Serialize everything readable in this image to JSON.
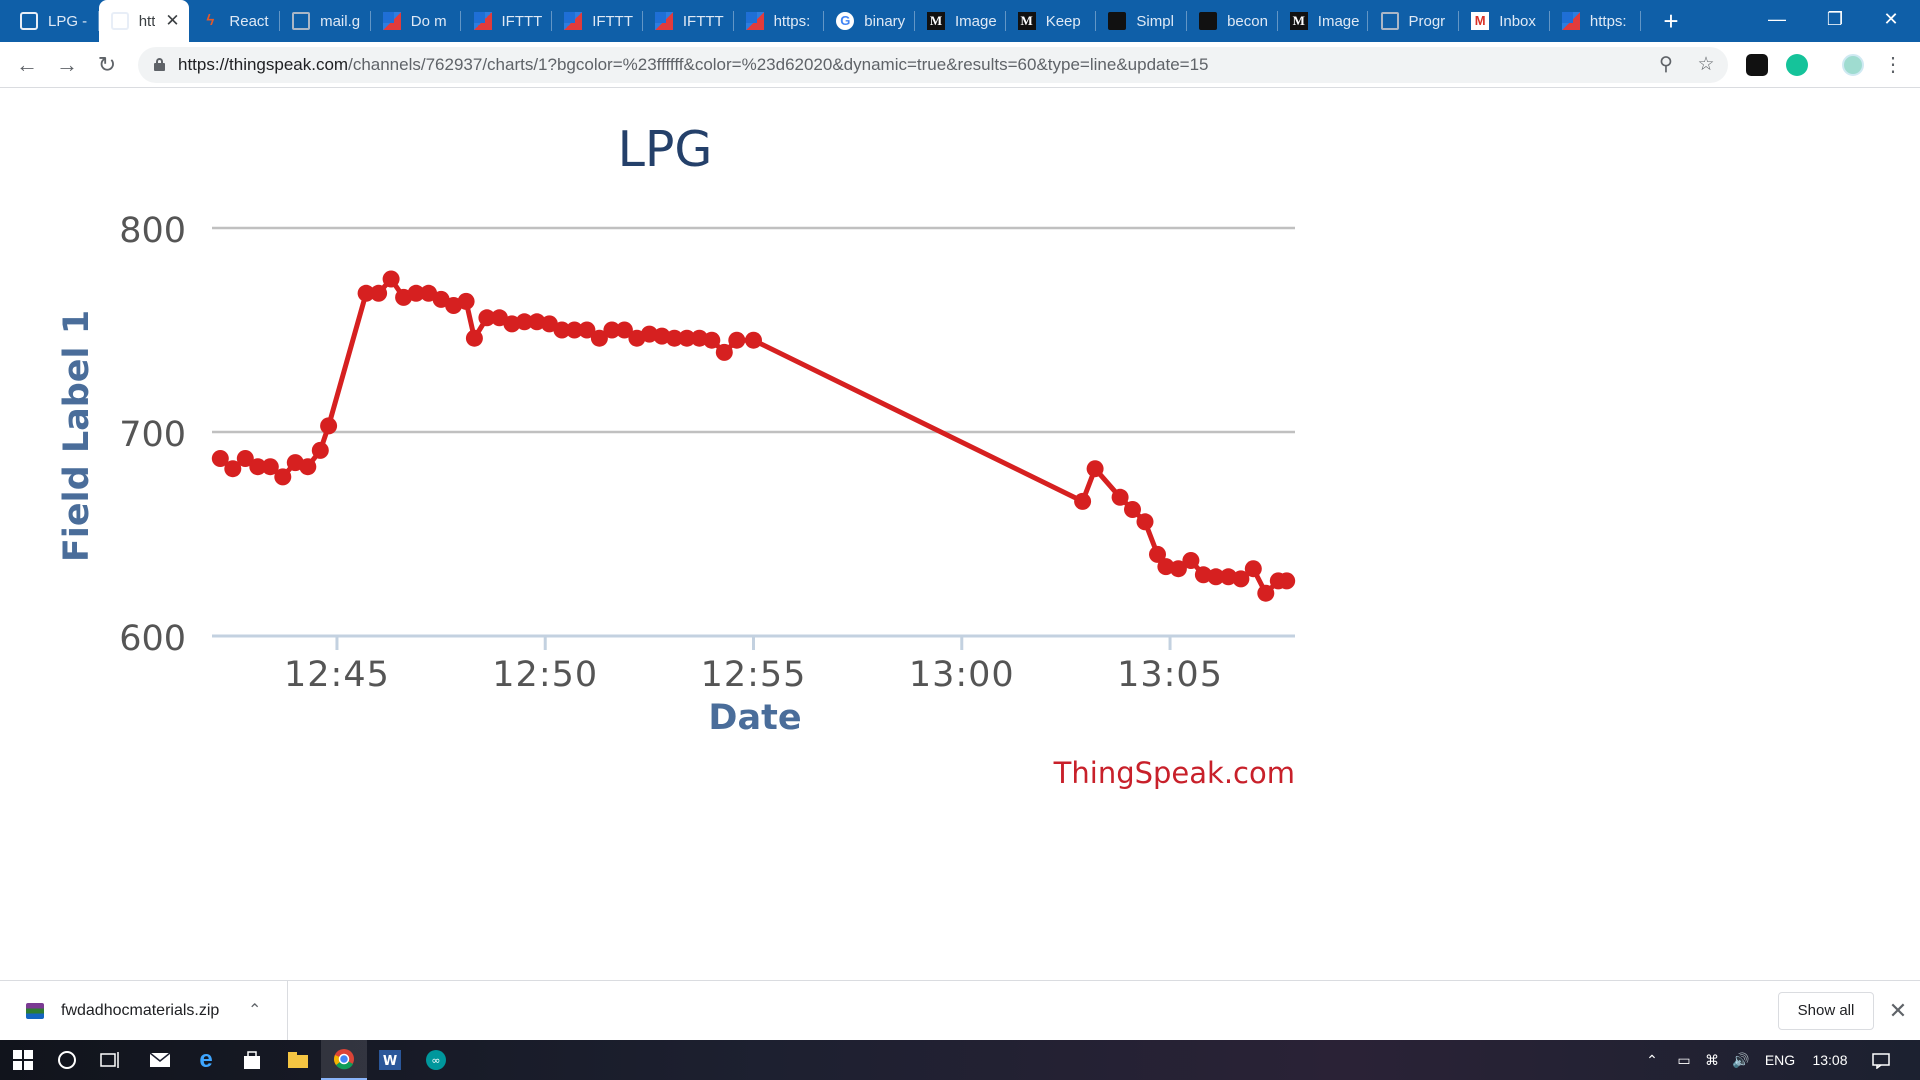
{
  "browser": {
    "tabs": [
      {
        "label": "LPG -",
        "icon": "chat-icon",
        "active": false
      },
      {
        "label": "htt",
        "icon": "chat-icon",
        "active": true
      },
      {
        "label": "React",
        "icon": "react-icon",
        "active": false
      },
      {
        "label": "mail.g",
        "icon": "document-icon",
        "active": false
      },
      {
        "label": "Do m",
        "icon": "thingspeak-icon",
        "active": false
      },
      {
        "label": "IFTTT",
        "icon": "thingspeak-icon",
        "active": false
      },
      {
        "label": "IFTTT",
        "icon": "thingspeak-icon",
        "active": false
      },
      {
        "label": "IFTTT",
        "icon": "thingspeak-icon",
        "active": false
      },
      {
        "label": "https:",
        "icon": "thingspeak-icon",
        "active": false
      },
      {
        "label": "binary",
        "icon": "google-icon",
        "active": false
      },
      {
        "label": "Image",
        "icon": "medium-icon",
        "active": false
      },
      {
        "label": "Keep",
        "icon": "medium-icon",
        "active": false
      },
      {
        "label": "Simpl",
        "icon": "dark-site-icon",
        "active": false
      },
      {
        "label": "becon",
        "icon": "dark-site-icon",
        "active": false
      },
      {
        "label": "Image",
        "icon": "medium-icon",
        "active": false
      },
      {
        "label": "Progr",
        "icon": "document-icon",
        "active": false
      },
      {
        "label": "Inbox",
        "icon": "gmail-icon",
        "active": false
      },
      {
        "label": "https:",
        "icon": "thingspeak-icon",
        "active": false
      }
    ],
    "new_tab": "+",
    "window_controls": {
      "minimize": "—",
      "restore": "❐",
      "close": "✕"
    },
    "url_host": "https://thingspeak.com",
    "url_path": "/channels/762937/charts/1?bgcolor=%23ffffff&color=%23d62020&dynamic=true&results=60&type=line&update=15",
    "toolbar_icons": [
      "back-icon",
      "forward-icon",
      "reload-icon",
      "lock-icon",
      "zoom-icon",
      "bookmark-star-icon",
      "extension-icon",
      "grammarly-icon",
      "profile-avatar",
      "menu-icon"
    ]
  },
  "chart_data": {
    "type": "line",
    "title": "LPG",
    "xlabel": "Date",
    "ylabel": "Field Label 1",
    "credit": "ThingSpeak.com",
    "line_color": "#d62020",
    "ylim": [
      600,
      800
    ],
    "yticks": [
      "600",
      "700",
      "800"
    ],
    "xticks": [
      "12:45",
      "12:50",
      "12:55",
      "13:00",
      "13:05"
    ],
    "xtick_minutes": [
      45,
      50,
      55,
      60,
      65
    ],
    "x_minutes_after": "12:00",
    "grid": true,
    "series": [
      {
        "x": [
          42.2,
          42.5,
          42.8,
          43.1,
          43.4,
          43.7,
          44.0,
          44.3,
          44.6,
          44.8,
          45.7,
          46.0,
          46.3,
          46.6,
          46.9,
          47.2,
          47.5,
          47.8,
          48.1,
          48.3,
          48.6,
          48.9,
          49.2,
          49.5,
          49.8,
          50.1,
          50.4,
          50.7,
          51.0,
          51.3,
          51.6,
          51.9,
          52.2,
          52.5,
          52.8,
          53.1,
          53.4,
          53.7,
          54.0,
          54.3,
          54.6,
          55.0,
          62.9,
          63.2,
          63.8,
          64.1,
          64.4,
          64.7,
          64.9,
          65.2,
          65.5,
          65.8,
          66.1,
          66.4,
          66.7,
          67.0,
          67.3,
          67.6,
          67.8
        ],
        "y": [
          687,
          682,
          687,
          683,
          683,
          678,
          685,
          683,
          691,
          703,
          768,
          768,
          775,
          766,
          768,
          768,
          765,
          762,
          764,
          746,
          756,
          756,
          753,
          754,
          754,
          753,
          750,
          750,
          750,
          746,
          750,
          750,
          746,
          748,
          747,
          746,
          746,
          746,
          745,
          739,
          745,
          745,
          666,
          682,
          668,
          662,
          656,
          640,
          634,
          633,
          637,
          630,
          629,
          629,
          628,
          633,
          621,
          627,
          627
        ]
      }
    ]
  },
  "downloads": {
    "file_name": "fwdadhocmaterials.zip",
    "show_all": "Show all",
    "close": "✕"
  },
  "taskbar": {
    "language": "ENG",
    "time": "13:08"
  }
}
